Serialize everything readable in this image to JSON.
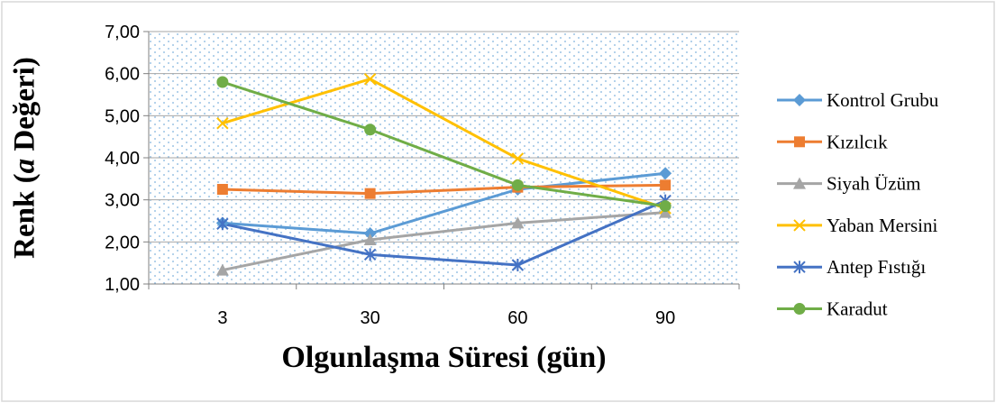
{
  "chart_data": {
    "type": "line",
    "xlabel": "Olgunlaşma Süresi (gün)",
    "ylabel": {
      "prefix": "Renk (",
      "italic": "a",
      "suffix": " Değeri)"
    },
    "categories": [
      "3",
      "30",
      "60",
      "90"
    ],
    "ylim": [
      1.0,
      7.0
    ],
    "yticks": [
      "1,00",
      "2,00",
      "3,00",
      "4,00",
      "5,00",
      "6,00",
      "7,00"
    ],
    "grid": "horizontal",
    "legend_position": "right",
    "plot_background": "dotted light-blue pattern",
    "series": [
      {
        "name": "Kontrol Grubu",
        "color": "#5B9BD5",
        "marker": "diamond",
        "values": [
          2.45,
          2.2,
          3.25,
          3.63
        ]
      },
      {
        "name": "Kızılcık",
        "color": "#ED7D31",
        "marker": "square",
        "values": [
          3.25,
          3.15,
          3.3,
          3.35
        ]
      },
      {
        "name": "Siyah Üzüm",
        "color": "#A5A5A5",
        "marker": "triangle",
        "values": [
          1.33,
          2.05,
          2.45,
          2.7
        ]
      },
      {
        "name": "Yaban Mersini",
        "color": "#FFC000",
        "marker": "x",
        "values": [
          4.82,
          5.87,
          3.98,
          2.8
        ]
      },
      {
        "name": "Antep Fıstığı",
        "color": "#4472C4",
        "marker": "star",
        "values": [
          2.43,
          1.7,
          1.45,
          2.98
        ]
      },
      {
        "name": "Karadut",
        "color": "#70AD47",
        "marker": "circle",
        "values": [
          5.8,
          4.67,
          3.35,
          2.85
        ]
      }
    ]
  }
}
